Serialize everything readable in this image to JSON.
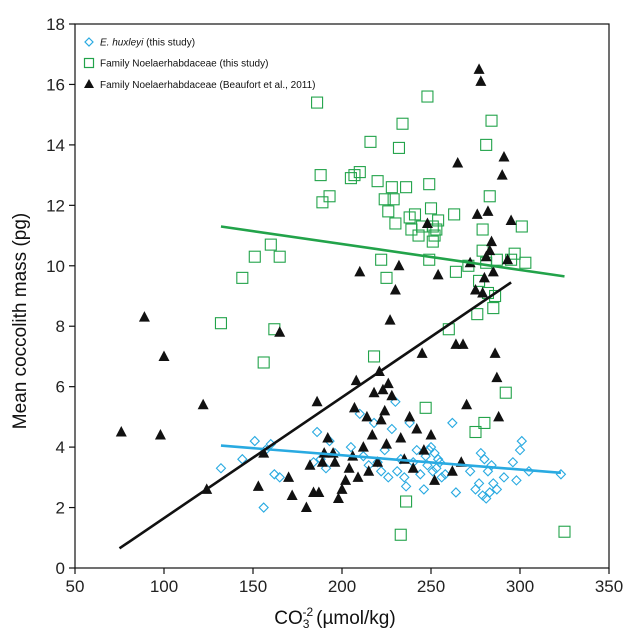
{
  "chart_data": {
    "type": "scatter",
    "xlabel": "CO",
    "xlabel_sub": "3",
    "xlabel_sup": "-2",
    "xlabel_units": "(µmol/kg)",
    "ylabel": "Mean coccolith mass (pg)",
    "xlim": [
      50,
      350
    ],
    "ylim": [
      0,
      18
    ],
    "xticks": [
      50,
      100,
      150,
      200,
      250,
      300,
      350
    ],
    "yticks": [
      0,
      2,
      4,
      6,
      8,
      10,
      12,
      14,
      16,
      18
    ],
    "grid": false,
    "legend_position": "top-left",
    "series": [
      {
        "name_italic": "E. huxleyi",
        "name_rest": " (this study)",
        "marker": "diamond-open",
        "color": "#29aae1",
        "points": [
          [
            132,
            3.3
          ],
          [
            144,
            3.6
          ],
          [
            151,
            4.2
          ],
          [
            156,
            2.0
          ],
          [
            157,
            3.9
          ],
          [
            160,
            4.1
          ],
          [
            162,
            3.1
          ],
          [
            165,
            3.0
          ],
          [
            184,
            3.5
          ],
          [
            186,
            4.5
          ],
          [
            188,
            3.6
          ],
          [
            191,
            3.3
          ],
          [
            193,
            4.2
          ],
          [
            196,
            3.8
          ],
          [
            205,
            4.0
          ],
          [
            210,
            5.1
          ],
          [
            212,
            3.7
          ],
          [
            215,
            3.4
          ],
          [
            218,
            4.8
          ],
          [
            220,
            3.5
          ],
          [
            222,
            3.2
          ],
          [
            224,
            3.9
          ],
          [
            226,
            3.0
          ],
          [
            228,
            4.6
          ],
          [
            230,
            5.5
          ],
          [
            231,
            3.2
          ],
          [
            233,
            3.6
          ],
          [
            235,
            3.0
          ],
          [
            236,
            2.7
          ],
          [
            238,
            4.8
          ],
          [
            240,
            3.5
          ],
          [
            242,
            3.9
          ],
          [
            244,
            3.1
          ],
          [
            246,
            2.6
          ],
          [
            247,
            3.7
          ],
          [
            248,
            3.4
          ],
          [
            249,
            3.9
          ],
          [
            250,
            4.0
          ],
          [
            251,
            3.2
          ],
          [
            252,
            3.8
          ],
          [
            253,
            3.3
          ],
          [
            254,
            3.6
          ],
          [
            255,
            3.5
          ],
          [
            256,
            3.0
          ],
          [
            258,
            3.1
          ],
          [
            262,
            4.8
          ],
          [
            264,
            2.5
          ],
          [
            272,
            3.2
          ],
          [
            275,
            2.6
          ],
          [
            277,
            2.8
          ],
          [
            278,
            3.8
          ],
          [
            279,
            2.4
          ],
          [
            280,
            3.6
          ],
          [
            281,
            2.3
          ],
          [
            282,
            3.2
          ],
          [
            283,
            2.5
          ],
          [
            284,
            3.4
          ],
          [
            285,
            2.8
          ],
          [
            287,
            2.6
          ],
          [
            291,
            3.0
          ],
          [
            296,
            3.5
          ],
          [
            298,
            2.9
          ],
          [
            300,
            3.9
          ],
          [
            301,
            4.2
          ],
          [
            305,
            3.2
          ],
          [
            323,
            3.1
          ]
        ],
        "trend": [
          [
            132,
            4.05
          ],
          [
            323,
            3.15
          ]
        ]
      },
      {
        "name": "Family Noelaerhabdaceae (this study)",
        "marker": "square-open",
        "color": "#22a34a",
        "points": [
          [
            132,
            8.1
          ],
          [
            144,
            9.6
          ],
          [
            151,
            10.3
          ],
          [
            156,
            6.8
          ],
          [
            160,
            10.7
          ],
          [
            162,
            7.9
          ],
          [
            165,
            10.3
          ],
          [
            186,
            15.4
          ],
          [
            188,
            13.0
          ],
          [
            189,
            12.1
          ],
          [
            193,
            12.3
          ],
          [
            205,
            12.9
          ],
          [
            207,
            13.0
          ],
          [
            210,
            13.1
          ],
          [
            216,
            14.1
          ],
          [
            218,
            7.0
          ],
          [
            220,
            12.8
          ],
          [
            222,
            10.2
          ],
          [
            224,
            12.2
          ],
          [
            225,
            9.6
          ],
          [
            226,
            11.8
          ],
          [
            228,
            12.6
          ],
          [
            229,
            12.2
          ],
          [
            230,
            11.4
          ],
          [
            232,
            13.9
          ],
          [
            234,
            14.7
          ],
          [
            236,
            12.6
          ],
          [
            238,
            11.6
          ],
          [
            239,
            11.2
          ],
          [
            241,
            11.7
          ],
          [
            243,
            11.0
          ],
          [
            245,
            11.3
          ],
          [
            247,
            5.3
          ],
          [
            248,
            15.6
          ],
          [
            249,
            12.7
          ],
          [
            250,
            11.9
          ],
          [
            251,
            11.3
          ],
          [
            252,
            11.0
          ],
          [
            253,
            11.2
          ],
          [
            254,
            11.5
          ],
          [
            249,
            10.2
          ],
          [
            251,
            10.8
          ],
          [
            260,
            7.9
          ],
          [
            263,
            11.7
          ],
          [
            264,
            9.8
          ],
          [
            271,
            10.0
          ],
          [
            275,
            4.5
          ],
          [
            276,
            8.4
          ],
          [
            277,
            9.5
          ],
          [
            279,
            10.5
          ],
          [
            279,
            11.2
          ],
          [
            280,
            4.8
          ],
          [
            281,
            10.1
          ],
          [
            282,
            9.1
          ],
          [
            283,
            12.3
          ],
          [
            284,
            14.8
          ],
          [
            285,
            8.6
          ],
          [
            286,
            9.0
          ],
          [
            287,
            10.2
          ],
          [
            281,
            14.0
          ],
          [
            292,
            5.8
          ],
          [
            295,
            10.2
          ],
          [
            297,
            10.4
          ],
          [
            301,
            11.3
          ],
          [
            303,
            10.1
          ],
          [
            233,
            1.1
          ],
          [
            236,
            2.2
          ],
          [
            325,
            1.2
          ]
        ],
        "trend": [
          [
            132,
            11.3
          ],
          [
            325,
            9.65
          ]
        ]
      },
      {
        "name": "Family Noelaerhabdaceae (Beaufort et al., 2011)",
        "marker": "triangle-filled",
        "color": "#111111",
        "points": [
          [
            76,
            4.5
          ],
          [
            89,
            8.3
          ],
          [
            98,
            4.4
          ],
          [
            100,
            7.0
          ],
          [
            122,
            5.4
          ],
          [
            124,
            2.6
          ],
          [
            153,
            2.7
          ],
          [
            156,
            3.8
          ],
          [
            165,
            7.8
          ],
          [
            170,
            3.0
          ],
          [
            172,
            2.4
          ],
          [
            180,
            2.0
          ],
          [
            182,
            3.4
          ],
          [
            184,
            2.5
          ],
          [
            186,
            5.5
          ],
          [
            187,
            2.5
          ],
          [
            189,
            3.5
          ],
          [
            190,
            3.8
          ],
          [
            192,
            4.3
          ],
          [
            195,
            3.8
          ],
          [
            196,
            3.5
          ],
          [
            198,
            2.3
          ],
          [
            200,
            2.6
          ],
          [
            202,
            2.9
          ],
          [
            204,
            3.3
          ],
          [
            206,
            3.7
          ],
          [
            207,
            5.3
          ],
          [
            208,
            6.2
          ],
          [
            209,
            3.0
          ],
          [
            210,
            9.8
          ],
          [
            212,
            4.0
          ],
          [
            214,
            5.0
          ],
          [
            215,
            3.2
          ],
          [
            217,
            4.4
          ],
          [
            218,
            5.8
          ],
          [
            220,
            3.5
          ],
          [
            221,
            6.5
          ],
          [
            222,
            4.9
          ],
          [
            223,
            5.9
          ],
          [
            224,
            5.2
          ],
          [
            225,
            4.1
          ],
          [
            226,
            6.1
          ],
          [
            227,
            8.2
          ],
          [
            228,
            5.7
          ],
          [
            230,
            9.2
          ],
          [
            232,
            10.0
          ],
          [
            233,
            4.3
          ],
          [
            235,
            3.6
          ],
          [
            238,
            5.0
          ],
          [
            240,
            3.3
          ],
          [
            242,
            4.6
          ],
          [
            245,
            7.1
          ],
          [
            246,
            3.9
          ],
          [
            248,
            11.4
          ],
          [
            250,
            4.4
          ],
          [
            252,
            2.9
          ],
          [
            254,
            9.7
          ],
          [
            262,
            3.2
          ],
          [
            264,
            7.4
          ],
          [
            265,
            13.4
          ],
          [
            267,
            3.5
          ],
          [
            268,
            7.4
          ],
          [
            270,
            5.4
          ],
          [
            272,
            10.1
          ],
          [
            275,
            9.2
          ],
          [
            276,
            11.7
          ],
          [
            277,
            16.5
          ],
          [
            278,
            16.1
          ],
          [
            279,
            9.1
          ],
          [
            280,
            9.6
          ],
          [
            281,
            10.3
          ],
          [
            282,
            11.8
          ],
          [
            283,
            10.5
          ],
          [
            284,
            10.8
          ],
          [
            285,
            9.8
          ],
          [
            286,
            7.1
          ],
          [
            287,
            6.3
          ],
          [
            288,
            5.0
          ],
          [
            290,
            13.0
          ],
          [
            291,
            13.6
          ],
          [
            293,
            10.2
          ],
          [
            295,
            11.5
          ]
        ],
        "trend": [
          [
            75,
            0.65
          ],
          [
            295,
            9.45
          ]
        ]
      }
    ]
  }
}
